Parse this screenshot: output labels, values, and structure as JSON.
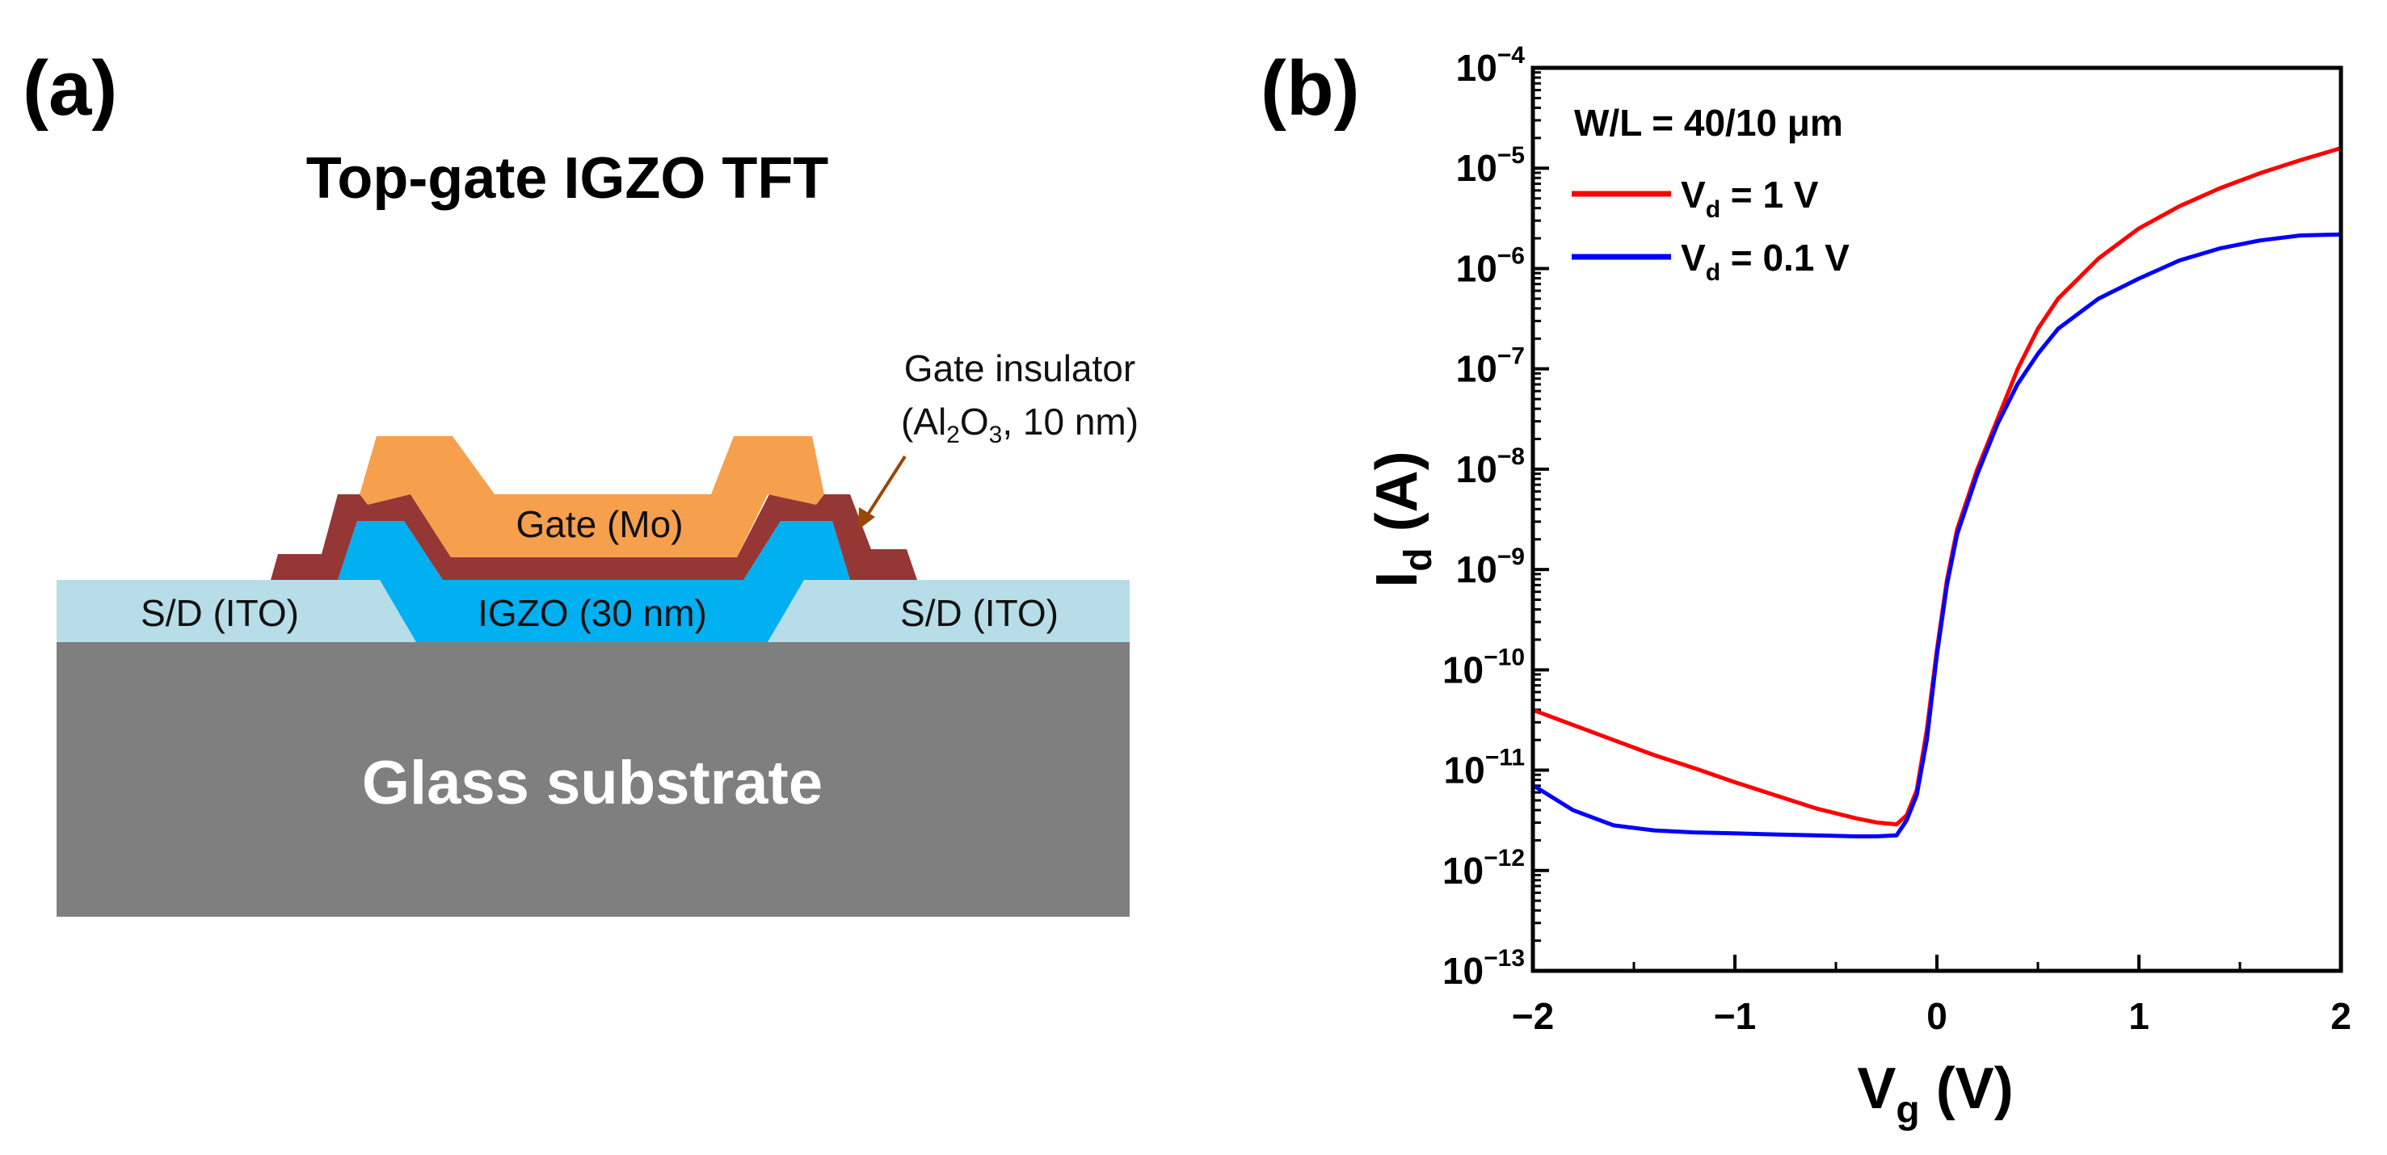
{
  "panel_a": {
    "label": "(a)",
    "title": "Top-gate IGZO TFT",
    "gate_label": "Gate (Mo)",
    "insulator_label_line1": "Gate insulator",
    "insulator_label_line2_prefix": "(Al",
    "insulator_label_sub1": "2",
    "insulator_label_mid": "O",
    "insulator_label_sub2": "3",
    "insulator_label_suffix": ", 10 nm)",
    "igzo_label": "IGZO (30 nm)",
    "sd_left_label": "S/D (ITO)",
    "sd_right_label": "S/D (ITO)",
    "substrate_label": "Glass substrate",
    "colors": {
      "gate": "#f6a04d",
      "insulator": "#953735",
      "igzo": "#00b0f0",
      "sd": "#b7dde8",
      "substrate": "#7f7f7f",
      "arrow": "#984807"
    }
  },
  "panel_b": {
    "label": "(b)"
  },
  "chart_data": {
    "type": "line",
    "yscale": "log",
    "xlabel_main": "V",
    "xlabel_sub": "g",
    "xlabel_unit": " (V)",
    "ylabel_main": "I",
    "ylabel_sub": "d",
    "ylabel_unit": " (A)",
    "xlim": [
      -2,
      2
    ],
    "ylim_exp": [
      -13,
      -4
    ],
    "x_ticks": [
      {
        "value": -2,
        "label": "−2"
      },
      {
        "value": -1,
        "label": "−1"
      },
      {
        "value": 0,
        "label": "0"
      },
      {
        "value": 1,
        "label": "1"
      },
      {
        "value": 2,
        "label": "2"
      }
    ],
    "y_ticks": [
      {
        "exp": -4,
        "base": "10",
        "sup": "−4"
      },
      {
        "exp": -5,
        "base": "10",
        "sup": "−5"
      },
      {
        "exp": -6,
        "base": "10",
        "sup": "−6"
      },
      {
        "exp": -7,
        "base": "10",
        "sup": "−7"
      },
      {
        "exp": -8,
        "base": "10",
        "sup": "−8"
      },
      {
        "exp": -9,
        "base": "10",
        "sup": "−9"
      },
      {
        "exp": -10,
        "base": "10",
        "sup": "−10"
      },
      {
        "exp": -11,
        "base": "10",
        "sup": "−11"
      },
      {
        "exp": -12,
        "base": "10",
        "sup": "−12"
      },
      {
        "exp": -13,
        "base": "10",
        "sup": "−13"
      }
    ],
    "annotation": "W/L = 40/10 μm",
    "legend_position": "top-left",
    "series": [
      {
        "name_main": "V",
        "name_sub": "d",
        "name_rest": " = 1 V",
        "color": "#ff0000",
        "x": [
          -2.0,
          -1.8,
          -1.6,
          -1.4,
          -1.2,
          -1.0,
          -0.8,
          -0.6,
          -0.4,
          -0.3,
          -0.2,
          -0.15,
          -0.1,
          -0.05,
          0.0,
          0.05,
          0.1,
          0.2,
          0.3,
          0.4,
          0.5,
          0.6,
          0.8,
          1.0,
          1.2,
          1.4,
          1.6,
          1.8,
          2.0
        ],
        "log10_y": [
          -10.4,
          -10.55,
          -10.7,
          -10.85,
          -10.98,
          -11.12,
          -11.25,
          -11.38,
          -11.48,
          -11.52,
          -11.54,
          -11.45,
          -11.2,
          -10.6,
          -9.8,
          -9.1,
          -8.6,
          -8.0,
          -7.5,
          -7.0,
          -6.6,
          -6.3,
          -5.9,
          -5.6,
          -5.38,
          -5.2,
          -5.05,
          -4.92,
          -4.8
        ]
      },
      {
        "name_main": "V",
        "name_sub": "d",
        "name_rest": " = 0.1 V",
        "color": "#0000ff",
        "x": [
          -2.0,
          -1.8,
          -1.6,
          -1.4,
          -1.2,
          -1.0,
          -0.8,
          -0.6,
          -0.4,
          -0.3,
          -0.2,
          -0.15,
          -0.1,
          -0.05,
          0.0,
          0.05,
          0.1,
          0.2,
          0.3,
          0.4,
          0.5,
          0.6,
          0.8,
          1.0,
          1.2,
          1.4,
          1.6,
          1.8,
          2.0
        ],
        "log10_y": [
          -11.15,
          -11.4,
          -11.55,
          -11.6,
          -11.62,
          -11.63,
          -11.64,
          -11.65,
          -11.66,
          -11.66,
          -11.65,
          -11.5,
          -11.25,
          -10.7,
          -9.85,
          -9.15,
          -8.65,
          -8.05,
          -7.55,
          -7.15,
          -6.85,
          -6.6,
          -6.3,
          -6.1,
          -5.92,
          -5.8,
          -5.72,
          -5.67,
          -5.66
        ]
      }
    ]
  }
}
